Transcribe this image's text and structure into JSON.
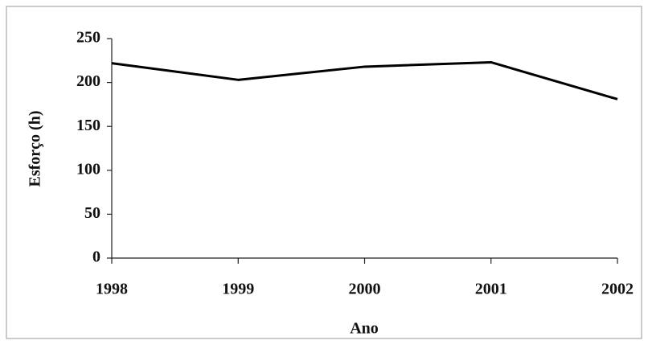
{
  "chart_data": {
    "type": "line",
    "x": [
      1998,
      1999,
      2000,
      2001,
      2002
    ],
    "series": [
      {
        "color": "#000000",
        "values": [
          222,
          203,
          218,
          223,
          181
        ]
      }
    ],
    "xlim": [
      1998,
      2002
    ],
    "xticks": [
      1998,
      1999,
      2000,
      2001,
      2002
    ],
    "ylim": [
      0,
      250
    ],
    "yticks": [
      0,
      50,
      100,
      150,
      200,
      250
    ],
    "xlabel": "Ano",
    "ylabel": "Esforço (h)",
    "grid": false
  }
}
